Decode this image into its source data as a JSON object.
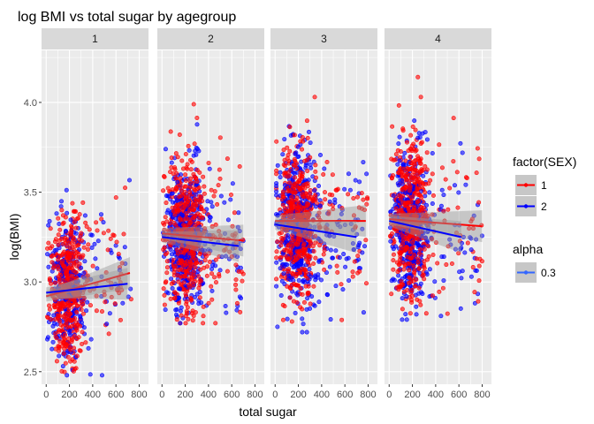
{
  "chart_data": {
    "type": "scatter",
    "title": "log BMI vs total sugar by agegroup",
    "xlabel": "total sugar",
    "ylabel": "log(BMI)",
    "xlim": [
      -40,
      880
    ],
    "ylim": [
      2.43,
      4.29
    ],
    "x_ticks": [
      0,
      200,
      400,
      600,
      800
    ],
    "x_tick_labels": [
      "0",
      "200",
      "400",
      "600",
      "800"
    ],
    "y_ticks": [
      2.5,
      3.0,
      3.5,
      4.0
    ],
    "y_tick_labels": [
      "2.5",
      "3.0",
      "3.5",
      "4.0"
    ],
    "grid": true,
    "point_alpha": 0.3,
    "series_colors": {
      "1": "#ff0000",
      "2": "#0000ff"
    },
    "facets": [
      {
        "label": "1",
        "points_sex1": 480,
        "points_sex2": 330,
        "sugar_range": [
          10,
          760
        ],
        "sugar_center": 180,
        "sugar_spread": 110,
        "bmi_sd": 0.2,
        "bmi_range": [
          2.48,
          3.88
        ],
        "fits": [
          {
            "sex": "1",
            "x": [
              0,
              720
            ],
            "y": [
              2.92,
              3.05
            ]
          },
          {
            "sex": "2",
            "x": [
              0,
              700
            ],
            "y": [
              2.94,
              2.99
            ]
          }
        ]
      },
      {
        "label": "2",
        "points_sex1": 560,
        "points_sex2": 520,
        "sugar_range": [
          10,
          700
        ],
        "sugar_center": 200,
        "sugar_spread": 120,
        "bmi_sd": 0.2,
        "bmi_range": [
          2.77,
          3.99
        ],
        "fits": [
          {
            "sex": "1",
            "x": [
              0,
              700
            ],
            "y": [
              3.27,
              3.23
            ]
          },
          {
            "sex": "2",
            "x": [
              0,
              660
            ],
            "y": [
              3.25,
              3.2
            ]
          }
        ]
      },
      {
        "label": "3",
        "points_sex1": 560,
        "points_sex2": 520,
        "sugar_range": [
          10,
          800
        ],
        "sugar_center": 180,
        "sugar_spread": 120,
        "bmi_sd": 0.2,
        "bmi_range": [
          2.72,
          4.03
        ],
        "fits": [
          {
            "sex": "1",
            "x": [
              0,
              780
            ],
            "y": [
              3.34,
              3.34
            ]
          },
          {
            "sex": "2",
            "x": [
              0,
              700
            ],
            "y": [
              3.32,
              3.25
            ]
          }
        ]
      },
      {
        "label": "4",
        "points_sex1": 540,
        "points_sex2": 470,
        "sugar_range": [
          10,
          800
        ],
        "sugar_center": 180,
        "sugar_spread": 110,
        "bmi_sd": 0.21,
        "bmi_range": [
          2.79,
          4.17
        ],
        "fits": [
          {
            "sex": "1",
            "x": [
              0,
              800
            ],
            "y": [
              3.35,
              3.31
            ]
          },
          {
            "sex": "2",
            "x": [
              0,
              620
            ],
            "y": [
              3.34,
              3.25
            ]
          }
        ]
      }
    ],
    "legends": [
      {
        "title": "factor(SEX)",
        "entries": [
          {
            "label": "1",
            "color": "#ff0000"
          },
          {
            "label": "2",
            "color": "#0000ff"
          }
        ]
      },
      {
        "title": "alpha",
        "entries": [
          {
            "label": "0.3",
            "color": "#3366ff"
          }
        ]
      }
    ],
    "legend_position": "right"
  }
}
